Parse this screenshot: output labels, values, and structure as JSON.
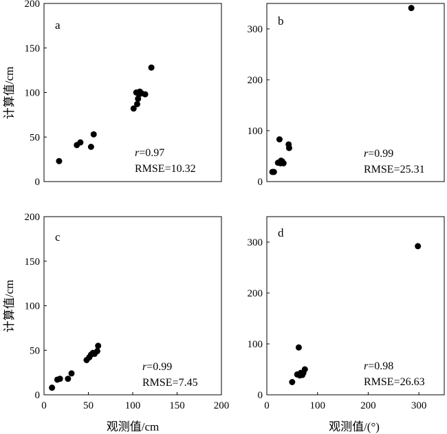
{
  "figure": {
    "ylabel": "计算值/cm",
    "xlabel_left": "观测值/cm",
    "xlabel_right": "观测值/(°)"
  },
  "chart_data": [
    {
      "type": "scatter",
      "panel": "a",
      "xlim": [
        0,
        200
      ],
      "ylim": [
        0,
        200
      ],
      "xticks": [],
      "yticks": [
        0,
        50,
        100,
        150,
        200
      ],
      "ylabel": "计算值/cm",
      "xlabel": "",
      "stats": {
        "r_symbol": "r",
        "r_text": "=0.97",
        "rmse_text": "RMSE=10.32"
      },
      "series": [
        {
          "x": [
            17,
            37,
            41,
            53,
            56,
            101,
            104,
            105,
            106,
            107,
            108,
            110,
            114,
            121
          ],
          "y": [
            23,
            41,
            44,
            39,
            53,
            82,
            100,
            87,
            93,
            98,
            101,
            99,
            98,
            128
          ]
        }
      ]
    },
    {
      "type": "scatter",
      "panel": "b",
      "xlim": [
        0,
        350
      ],
      "ylim": [
        0,
        350
      ],
      "xticks": [],
      "yticks": [
        0,
        100,
        200,
        300
      ],
      "ylabel": "",
      "xlabel": "",
      "stats": {
        "r_symbol": "r",
        "r_text": "=0.99",
        "rmse_text": "RMSE=25.31"
      },
      "series": [
        {
          "x": [
            11,
            14,
            22,
            25,
            27,
            28,
            30,
            33,
            43,
            44,
            285
          ],
          "y": [
            19,
            19,
            37,
            83,
            36,
            41,
            40,
            36,
            73,
            66,
            341
          ]
        }
      ]
    },
    {
      "type": "scatter",
      "panel": "c",
      "xlim": [
        0,
        200
      ],
      "ylim": [
        0,
        200
      ],
      "xticks": [
        0,
        50,
        100,
        150,
        200
      ],
      "yticks": [
        0,
        50,
        100,
        150,
        200
      ],
      "ylabel": "计算值/cm",
      "xlabel": "观测值/cm",
      "stats": {
        "r_symbol": "r",
        "r_text": "=0.99",
        "rmse_text": "RMSE=7.45"
      },
      "series": [
        {
          "x": [
            9,
            15,
            18,
            27,
            31,
            48,
            51,
            53,
            55,
            57,
            60,
            61
          ],
          "y": [
            8,
            17,
            18,
            18,
            24,
            39,
            42,
            45,
            47,
            46,
            49,
            55
          ]
        }
      ]
    },
    {
      "type": "scatter",
      "panel": "d",
      "xlim": [
        0,
        350
      ],
      "ylim": [
        0,
        350
      ],
      "xticks": [
        0,
        100,
        200,
        300
      ],
      "yticks": [
        0,
        100,
        200,
        300
      ],
      "ylabel": "",
      "xlabel": "观测值/(°)",
      "stats": {
        "r_symbol": "r",
        "r_text": "=0.98",
        "rmse_text": "RMSE=26.63"
      },
      "series": [
        {
          "x": [
            50,
            60,
            63,
            65,
            67,
            70,
            72,
            75,
            298
          ],
          "y": [
            25,
            40,
            93,
            38,
            43,
            39,
            43,
            50,
            292
          ]
        }
      ]
    }
  ]
}
